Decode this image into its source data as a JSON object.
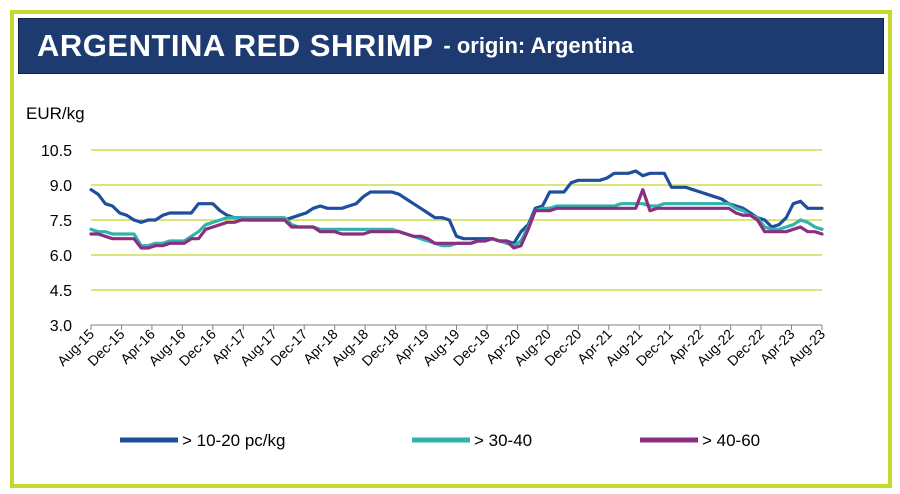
{
  "header": {
    "title": "ARGENTINA RED SHRIMP",
    "subtitle": "- origin: Argentina"
  },
  "colors": {
    "frame": "#c4d82e",
    "banner": "#1d3b70",
    "grid": "#c4d82e"
  },
  "chart_data": {
    "type": "line",
    "ylabel": "EUR/kg",
    "ylim": [
      3.0,
      10.5
    ],
    "yticks": [
      "3.0",
      "4.5",
      "6.0",
      "7.5",
      "9.0",
      "10.5"
    ],
    "xtick_labels": [
      "Aug-15",
      "Dec-15",
      "Apr-16",
      "Aug-16",
      "Dec-16",
      "Apr-17",
      "Aug-17",
      "Dec-17",
      "Apr-18",
      "Aug-18",
      "Dec-18",
      "Apr-19",
      "Aug-19",
      "Dec-19",
      "Apr-20",
      "Aug-20",
      "Dec-20",
      "Apr-21",
      "Aug-21",
      "Dec-21",
      "Apr-22",
      "Aug-22",
      "Dec-22",
      "Apr-23",
      "Aug-23"
    ],
    "x_range": [
      "Aug-15",
      "Aug-23"
    ],
    "grid": true,
    "legend_position": "bottom",
    "series": [
      {
        "name": "> 10-20 pc/kg",
        "color": "#1f4e9c",
        "values": [
          8.8,
          8.6,
          8.2,
          8.1,
          7.8,
          7.7,
          7.5,
          7.4,
          7.5,
          7.5,
          7.7,
          7.8,
          7.8,
          7.8,
          7.8,
          8.2,
          8.2,
          8.2,
          7.9,
          7.7,
          7.6,
          7.6,
          7.5,
          7.5,
          7.5,
          7.5,
          7.5,
          7.5,
          7.6,
          7.7,
          7.8,
          8.0,
          8.1,
          8.0,
          8.0,
          8.0,
          8.1,
          8.2,
          8.5,
          8.7,
          8.7,
          8.7,
          8.7,
          8.6,
          8.4,
          8.2,
          8.0,
          7.8,
          7.6,
          7.6,
          7.5,
          6.8,
          6.7,
          6.7,
          6.7,
          6.7,
          6.7,
          6.6,
          6.6,
          6.5,
          7.0,
          7.3,
          8.0,
          8.1,
          8.7,
          8.7,
          8.7,
          9.1,
          9.2,
          9.2,
          9.2,
          9.2,
          9.3,
          9.5,
          9.5,
          9.5,
          9.6,
          9.4,
          9.5,
          9.5,
          9.5,
          8.9,
          8.9,
          8.9,
          8.8,
          8.7,
          8.6,
          8.5,
          8.4,
          8.2,
          8.1,
          8.0,
          7.8,
          7.6,
          7.5,
          7.2,
          7.3,
          7.6,
          8.2,
          8.3,
          8.0,
          8.0,
          8.0
        ]
      },
      {
        "name": "> 30-40",
        "color": "#2fb3aa",
        "values": [
          7.1,
          7.0,
          7.0,
          6.9,
          6.9,
          6.9,
          6.9,
          6.4,
          6.4,
          6.5,
          6.5,
          6.6,
          6.6,
          6.6,
          6.8,
          7.0,
          7.3,
          7.4,
          7.5,
          7.6,
          7.6,
          7.6,
          7.6,
          7.6,
          7.6,
          7.6,
          7.6,
          7.6,
          7.3,
          7.2,
          7.2,
          7.2,
          7.1,
          7.1,
          7.1,
          7.1,
          7.1,
          7.1,
          7.1,
          7.1,
          7.1,
          7.1,
          7.1,
          7.0,
          6.9,
          6.8,
          6.7,
          6.6,
          6.5,
          6.4,
          6.4,
          6.5,
          6.5,
          6.5,
          6.6,
          6.6,
          6.7,
          6.6,
          6.5,
          6.4,
          6.6,
          7.2,
          7.9,
          8.0,
          8.0,
          8.1,
          8.1,
          8.1,
          8.1,
          8.1,
          8.1,
          8.1,
          8.1,
          8.1,
          8.2,
          8.2,
          8.2,
          8.2,
          8.1,
          8.1,
          8.2,
          8.2,
          8.2,
          8.2,
          8.2,
          8.2,
          8.2,
          8.2,
          8.2,
          8.2,
          8.0,
          7.9,
          7.7,
          7.6,
          7.2,
          7.1,
          7.1,
          7.2,
          7.3,
          7.5,
          7.4,
          7.2,
          7.1
        ]
      },
      {
        "name": "> 40-60",
        "color": "#8b2e82",
        "values": [
          6.9,
          6.9,
          6.8,
          6.7,
          6.7,
          6.7,
          6.7,
          6.3,
          6.3,
          6.4,
          6.4,
          6.5,
          6.5,
          6.5,
          6.7,
          6.7,
          7.1,
          7.2,
          7.3,
          7.4,
          7.4,
          7.5,
          7.5,
          7.5,
          7.5,
          7.5,
          7.5,
          7.5,
          7.2,
          7.2,
          7.2,
          7.2,
          7.0,
          7.0,
          7.0,
          6.9,
          6.9,
          6.9,
          6.9,
          7.0,
          7.0,
          7.0,
          7.0,
          7.0,
          6.9,
          6.8,
          6.8,
          6.7,
          6.5,
          6.5,
          6.5,
          6.5,
          6.5,
          6.5,
          6.6,
          6.6,
          6.7,
          6.6,
          6.6,
          6.3,
          6.4,
          7.1,
          7.9,
          7.9,
          7.9,
          8.0,
          8.0,
          8.0,
          8.0,
          8.0,
          8.0,
          8.0,
          8.0,
          8.0,
          8.0,
          8.0,
          8.0,
          8.8,
          7.9,
          8.0,
          8.0,
          8.0,
          8.0,
          8.0,
          8.0,
          8.0,
          8.0,
          8.0,
          8.0,
          8.0,
          7.8,
          7.7,
          7.7,
          7.5,
          7.0,
          7.0,
          7.0,
          7.0,
          7.1,
          7.2,
          7.0,
          7.0,
          6.9
        ]
      }
    ]
  }
}
